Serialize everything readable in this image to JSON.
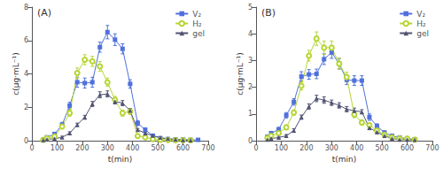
{
  "chart_data": [
    {
      "type": "line",
      "title": "(A)",
      "xlabel": "t(min)",
      "ylabel": "c(μg·mL⁻¹)",
      "xlim": [
        0,
        700
      ],
      "ylim": [
        0,
        8
      ],
      "xticks": [
        0,
        100,
        200,
        300,
        400,
        500,
        600,
        700
      ],
      "yticks": [
        0,
        2,
        4,
        6,
        8
      ],
      "grid": false,
      "legend": "upper right",
      "series": [
        {
          "name": "V₂",
          "marker": "square",
          "x": [
            45,
            60,
            90,
            120,
            150,
            180,
            210,
            240,
            270,
            300,
            330,
            360,
            390,
            420,
            450,
            480,
            510,
            540,
            570,
            600,
            630,
            660
          ],
          "values": [
            0.05,
            0.2,
            0.4,
            0.95,
            2.1,
            3.5,
            3.45,
            3.5,
            5.6,
            6.5,
            6.05,
            5.5,
            3.4,
            1.05,
            0.65,
            0.3,
            0.15,
            0.1,
            0.08,
            0.07,
            0.05,
            0.05
          ],
          "yerr": [
            0.05,
            0.08,
            0.1,
            0.15,
            0.2,
            0.3,
            0.3,
            0.3,
            0.3,
            0.4,
            0.35,
            0.3,
            0.25,
            0.15,
            0.12,
            0.08,
            0.06,
            0.05,
            0.04,
            0.04,
            0.03,
            0.03
          ]
        },
        {
          "name": "H₂",
          "marker": "open_circle",
          "x": [
            45,
            60,
            90,
            120,
            150,
            180,
            210,
            240,
            270,
            300,
            330,
            360,
            390,
            420,
            450,
            480,
            510,
            540,
            570,
            600,
            630
          ],
          "values": [
            0.05,
            0.15,
            0.25,
            0.85,
            1.65,
            4.05,
            4.85,
            4.75,
            4.45,
            3.5,
            2.45,
            1.65,
            1.75,
            0.28,
            0.2,
            0.1,
            0.05,
            0.04,
            0.03,
            0.03,
            0.03
          ],
          "yerr": [
            0.04,
            0.06,
            0.08,
            0.12,
            0.18,
            0.3,
            0.3,
            0.3,
            0.3,
            0.25,
            0.2,
            0.18,
            0.18,
            0.08,
            0.07,
            0.05,
            0.03,
            0.03,
            0.02,
            0.02,
            0.02
          ]
        },
        {
          "name": "gel",
          "marker": "triangle",
          "x": [
            45,
            60,
            90,
            120,
            150,
            180,
            210,
            240,
            270,
            300,
            330,
            360,
            390,
            420,
            450,
            480,
            510,
            540,
            570,
            600,
            630
          ],
          "values": [
            0.04,
            0.08,
            0.12,
            0.2,
            0.45,
            0.95,
            1.4,
            2.2,
            2.75,
            2.8,
            2.35,
            2.25,
            1.8,
            0.65,
            0.45,
            0.3,
            0.18,
            0.12,
            0.08,
            0.04,
            0.03
          ],
          "yerr": [
            0.02,
            0.03,
            0.05,
            0.07,
            0.08,
            0.1,
            0.12,
            0.15,
            0.18,
            0.18,
            0.15,
            0.15,
            0.12,
            0.08,
            0.07,
            0.06,
            0.05,
            0.04,
            0.03,
            0.02,
            0.02
          ]
        }
      ]
    },
    {
      "type": "line",
      "title": "(B)",
      "xlabel": "t(min)",
      "ylabel": "c(μg·mL⁻¹)",
      "xlim": [
        0,
        700
      ],
      "ylim": [
        0,
        5
      ],
      "xticks": [
        0,
        100,
        200,
        300,
        400,
        500,
        600,
        700
      ],
      "yticks": [
        0,
        1,
        2,
        3,
        4,
        5
      ],
      "grid": false,
      "legend": "upper right",
      "series": [
        {
          "name": "V₂",
          "marker": "square",
          "x": [
            45,
            60,
            90,
            120,
            150,
            180,
            210,
            240,
            270,
            300,
            330,
            360,
            390,
            420,
            450,
            480,
            510,
            540,
            570,
            600,
            630
          ],
          "values": [
            0.15,
            0.28,
            0.42,
            0.95,
            1.45,
            2.4,
            2.48,
            2.5,
            3.05,
            3.3,
            2.88,
            2.28,
            2.25,
            2.25,
            0.88,
            0.55,
            0.3,
            0.18,
            0.12,
            0.08,
            0.05
          ],
          "yerr": [
            0.05,
            0.07,
            0.08,
            0.1,
            0.12,
            0.18,
            0.18,
            0.18,
            0.2,
            0.22,
            0.2,
            0.18,
            0.18,
            0.18,
            0.12,
            0.08,
            0.07,
            0.06,
            0.05,
            0.04,
            0.03
          ]
        },
        {
          "name": "H₂",
          "marker": "open_circle",
          "x": [
            45,
            60,
            90,
            120,
            150,
            180,
            210,
            240,
            270,
            300,
            330,
            360,
            390,
            420,
            450,
            480,
            510,
            540,
            570,
            600,
            630
          ],
          "values": [
            0.1,
            0.18,
            0.28,
            0.5,
            1.05,
            2.05,
            3.18,
            3.82,
            3.48,
            3.48,
            2.88,
            2.38,
            0.98,
            0.68,
            0.58,
            0.38,
            0.22,
            0.12,
            0.08,
            0.08,
            0.04
          ],
          "yerr": [
            0.04,
            0.05,
            0.07,
            0.08,
            0.1,
            0.15,
            0.2,
            0.25,
            0.25,
            0.25,
            0.2,
            0.18,
            0.12,
            0.1,
            0.08,
            0.07,
            0.06,
            0.04,
            0.04,
            0.04,
            0.02
          ]
        },
        {
          "name": "gel",
          "marker": "triangle",
          "x": [
            45,
            60,
            90,
            120,
            150,
            180,
            210,
            240,
            270,
            300,
            330,
            360,
            390,
            420,
            450,
            480,
            510,
            540,
            570,
            600,
            630
          ],
          "values": [
            0.04,
            0.08,
            0.12,
            0.18,
            0.38,
            0.88,
            1.28,
            1.58,
            1.52,
            1.42,
            1.32,
            1.18,
            1.12,
            1.08,
            0.48,
            0.32,
            0.18,
            0.08,
            0.04,
            0.04,
            0.03
          ],
          "yerr": [
            0.02,
            0.03,
            0.04,
            0.05,
            0.07,
            0.08,
            0.1,
            0.12,
            0.12,
            0.1,
            0.1,
            0.1,
            0.1,
            0.08,
            0.07,
            0.06,
            0.05,
            0.03,
            0.02,
            0.02,
            0.02
          ]
        }
      ]
    }
  ]
}
